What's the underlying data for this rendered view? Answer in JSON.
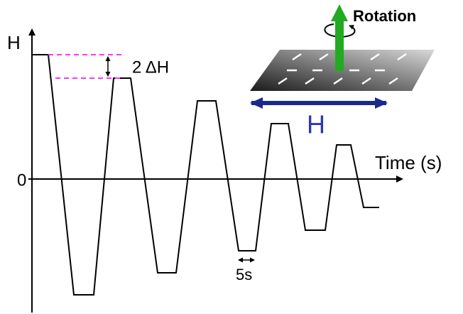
{
  "axis": {
    "y_label": "H",
    "zero_label": "0",
    "x_label": "Time (s)"
  },
  "annotations": {
    "amplitude_step": "2 ΔH",
    "dwell": "5s"
  },
  "inset": {
    "rotation_label": "Rotation",
    "field_label": "H"
  }
}
